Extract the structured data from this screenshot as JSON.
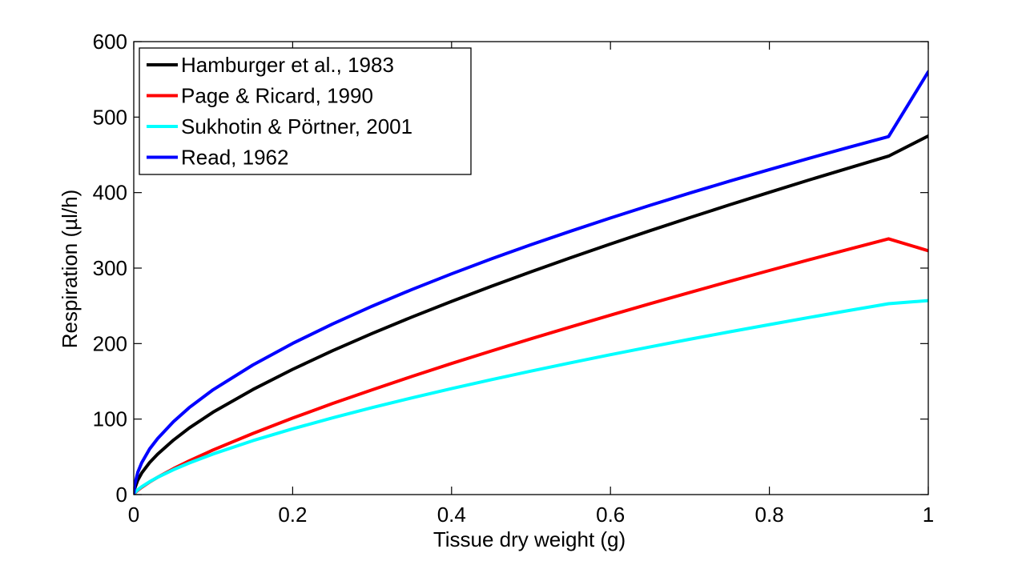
{
  "chart_data": {
    "type": "line",
    "title": "",
    "xlabel": "Tissue dry weight (g)",
    "ylabel": "Respiration (µl/h)",
    "xlim": [
      0,
      1
    ],
    "ylim": [
      0,
      600
    ],
    "xticks": [
      0,
      0.2,
      0.4,
      0.6,
      0.8,
      1
    ],
    "xtick_labels": [
      "0",
      "0.2",
      "0.4",
      "0.6",
      "0.8",
      "1"
    ],
    "yticks": [
      0,
      100,
      200,
      300,
      400,
      500,
      600
    ],
    "ytick_labels": [
      "0",
      "100",
      "200",
      "300",
      "400",
      "500",
      "600"
    ],
    "grid": false,
    "legend_position": "top-left",
    "x": [
      0,
      0.001,
      0.005,
      0.01,
      0.02,
      0.03,
      0.05,
      0.07,
      0.1,
      0.15,
      0.2,
      0.25,
      0.3,
      0.35,
      0.4,
      0.45,
      0.5,
      0.55,
      0.6,
      0.65,
      0.7,
      0.75,
      0.8,
      0.85,
      0.9,
      0.95,
      1
    ],
    "series": [
      {
        "name": "Hamburger et al., 1983",
        "color": "#000000",
        "values": [
          0,
          7.4,
          19.1,
          28.5,
          42.4,
          53.5,
          72.2,
          88.3,
          109.3,
          139.2,
          165.9,
          190.5,
          213.4,
          235.1,
          255.9,
          275.8,
          295.1,
          313.8,
          331.9,
          349.6,
          366.9,
          383.9,
          400.4,
          416.7,
          432.6,
          448.3,
          475.0
        ]
      },
      {
        "name": "Page & Ricard, 1990",
        "color": "#ff0000",
        "values": [
          0,
          1.7,
          5.6,
          9.6,
          16.6,
          22.9,
          34.3,
          44.7,
          59.1,
          81.0,
          101.3,
          120.5,
          138.8,
          156.5,
          173.6,
          190.2,
          206.4,
          222.2,
          237.7,
          252.9,
          267.8,
          282.4,
          296.8,
          311.0,
          325.0,
          338.8,
          323.0
        ]
      },
      {
        "name": "Sukhotin & Pörtner, 2001",
        "color": "#00ffff",
        "values": [
          0,
          2.2,
          6.4,
          10.4,
          17.1,
          22.9,
          33.0,
          41.9,
          53.9,
          71.4,
          87.1,
          101.6,
          115.2,
          128.1,
          140.4,
          152.2,
          163.6,
          174.6,
          185.3,
          195.7,
          205.8,
          215.6,
          225.2,
          234.6,
          243.8,
          252.8,
          257.0
        ]
      },
      {
        "name": "Read, 1962",
        "color": "#0000ff",
        "values": [
          0,
          12.3,
          29.4,
          42.2,
          60.4,
          74.2,
          96.6,
          115.3,
          139.0,
          171.7,
          200.2,
          225.9,
          249.5,
          271.6,
          292.4,
          312.2,
          331.0,
          349.0,
          366.4,
          383.2,
          399.4,
          415.2,
          430.5,
          445.4,
          460.0,
          474.2,
          560.0
        ]
      }
    ]
  }
}
